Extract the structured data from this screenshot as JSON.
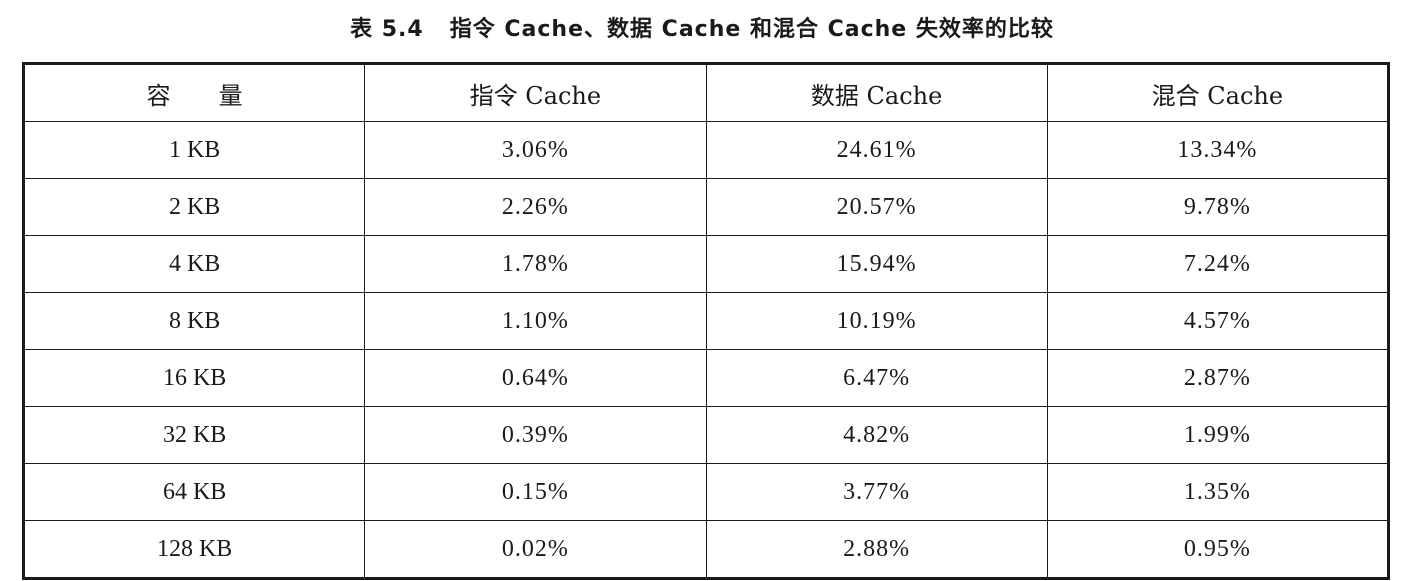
{
  "caption": {
    "number": "表 5.4",
    "text": "指令 Cache、数据 Cache 和混合 Cache 失效率的比较"
  },
  "table": {
    "headers": [
      "容量",
      "指令 Cache",
      "数据 Cache",
      "混合 Cache"
    ],
    "rows": [
      [
        "1 KB",
        "3.06%",
        "24.61%",
        "13.34%"
      ],
      [
        "2 KB",
        "2.26%",
        "20.57%",
        "9.78%"
      ],
      [
        "4 KB",
        "1.78%",
        "15.94%",
        "7.24%"
      ],
      [
        "8 KB",
        "1.10%",
        "10.19%",
        "4.57%"
      ],
      [
        "16 KB",
        "0.64%",
        "6.47%",
        "2.87%"
      ],
      [
        "32 KB",
        "0.39%",
        "4.82%",
        "1.99%"
      ],
      [
        "64 KB",
        "0.15%",
        "3.77%",
        "1.35%"
      ],
      [
        "128 KB",
        "0.02%",
        "2.88%",
        "0.95%"
      ]
    ]
  }
}
